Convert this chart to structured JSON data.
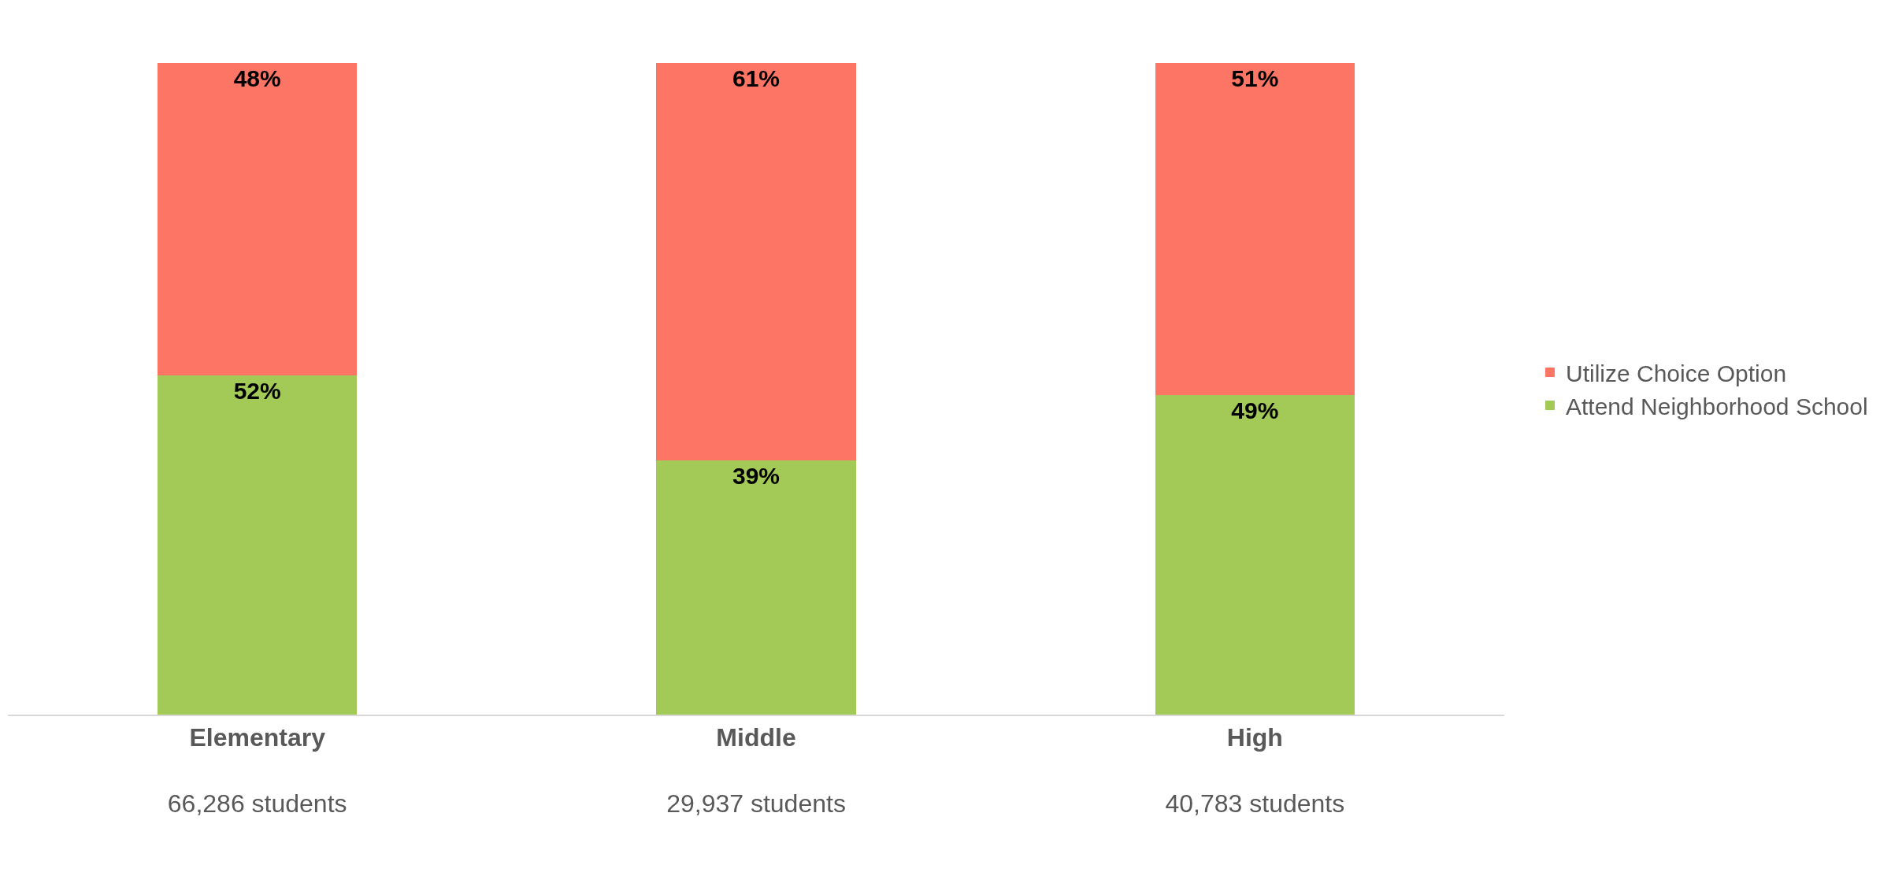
{
  "chart_data": {
    "type": "bar",
    "stacked": true,
    "categories": [
      "Elementary\n66,286 students",
      "Middle\n29,937 students",
      "High\n40,783 students"
    ],
    "series": [
      {
        "name": "Attend Neighborhood School",
        "color": "#a3c957",
        "values": [
          52,
          39,
          49
        ],
        "value_labels": [
          "52%",
          "39%",
          "49%"
        ]
      },
      {
        "name": "Utilize Choice Option",
        "color": "#fd7565",
        "values": [
          48,
          61,
          51
        ],
        "value_labels": [
          "48%",
          "61%",
          "51%"
        ]
      }
    ],
    "ylim": [
      0,
      100
    ],
    "tick_labels": "x",
    "legend": "right"
  }
}
